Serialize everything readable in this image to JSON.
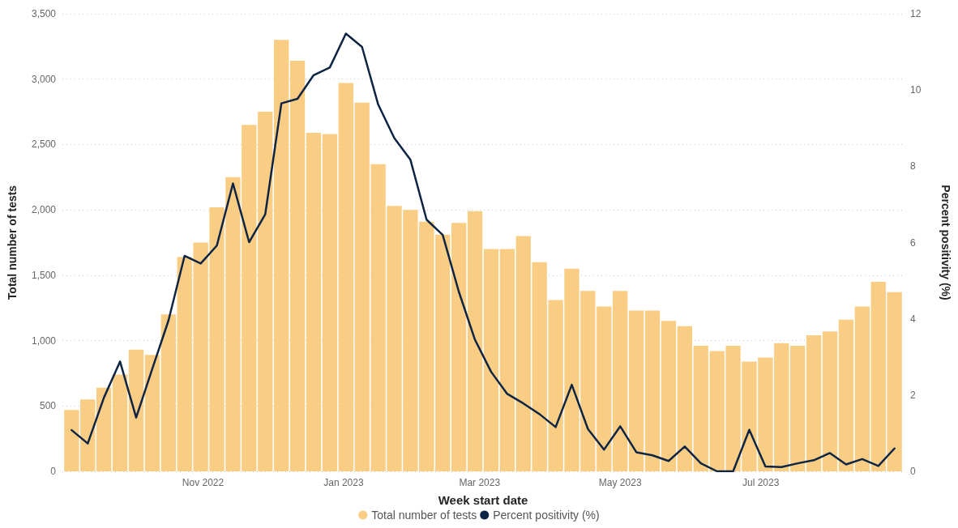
{
  "chart_data": {
    "type": "bar",
    "xlabel": "Week start date",
    "ylabel": "Total number of tests",
    "y2label": "Percent positivity (%)",
    "x": [
      "2022-09-05",
      "2022-09-12",
      "2022-09-19",
      "2022-09-26",
      "2022-10-03",
      "2022-10-10",
      "2022-10-17",
      "2022-10-24",
      "2022-10-31",
      "2022-11-07",
      "2022-11-14",
      "2022-11-21",
      "2022-11-28",
      "2022-12-05",
      "2022-12-12",
      "2022-12-19",
      "2022-12-26",
      "2023-01-02",
      "2023-01-09",
      "2023-01-16",
      "2023-01-23",
      "2023-01-30",
      "2023-02-06",
      "2023-02-13",
      "2023-02-20",
      "2023-02-27",
      "2023-03-06",
      "2023-03-13",
      "2023-03-20",
      "2023-03-27",
      "2023-04-03",
      "2023-04-10",
      "2023-04-17",
      "2023-04-24",
      "2023-05-01",
      "2023-05-08",
      "2023-05-15",
      "2023-05-22",
      "2023-05-29",
      "2023-06-05",
      "2023-06-12",
      "2023-06-19",
      "2023-06-26",
      "2023-07-03",
      "2023-07-10",
      "2023-07-17",
      "2023-07-24",
      "2023-07-31",
      "2023-08-07",
      "2023-08-14",
      "2023-08-21",
      "2023-08-28"
    ],
    "series": [
      {
        "name": "Total number of tests",
        "color": "#f9cd84",
        "values": [
          470,
          550,
          640,
          740,
          930,
          890,
          1200,
          1640,
          1750,
          2020,
          2250,
          2650,
          2750,
          3300,
          3140,
          2590,
          2580,
          2970,
          2820,
          2350,
          2030,
          2000,
          1910,
          1810,
          1900,
          1990,
          1700,
          1700,
          1800,
          1600,
          1310,
          1550,
          1380,
          1260,
          1380,
          1230,
          1230,
          1150,
          1110,
          960,
          920,
          960,
          840,
          870,
          980,
          960,
          1040,
          1070,
          1160,
          1260,
          1450,
          1370
        ]
      },
      {
        "name": "Percent positivity (%)",
        "type": "line",
        "axis": "y2",
        "color": "#0d2444",
        "values": [
          1.08,
          0.73,
          1.93,
          2.88,
          1.41,
          2.69,
          3.95,
          5.65,
          5.45,
          5.92,
          7.55,
          6.01,
          6.74,
          9.65,
          9.77,
          10.39,
          10.59,
          11.48,
          11.13,
          9.62,
          8.74,
          8.17,
          6.6,
          6.2,
          4.71,
          3.45,
          2.61,
          2.03,
          1.78,
          1.5,
          1.16,
          2.27,
          1.11,
          0.57,
          1.18,
          0.5,
          0.42,
          0.27,
          0.65,
          0.21,
          0,
          0,
          1.09,
          0.13,
          0.11,
          0.21,
          0.29,
          0.48,
          0.18,
          0.32,
          0.14,
          0.6
        ]
      }
    ],
    "xlim": [
      "2022-09-01",
      "2023-09-01"
    ],
    "xticks": [
      {
        "value": "2022-11-01",
        "label": "Nov 2022"
      },
      {
        "value": "2023-01-01",
        "label": "Jan 2023"
      },
      {
        "value": "2023-03-01",
        "label": "Mar 2023"
      },
      {
        "value": "2023-05-01",
        "label": "May 2023"
      },
      {
        "value": "2023-07-01",
        "label": "Jul 2023"
      }
    ],
    "ylim": [
      0,
      3500
    ],
    "yticks": [
      {
        "value": 0,
        "label": "0"
      },
      {
        "value": 500,
        "label": "500"
      },
      {
        "value": 1000,
        "label": "1,000"
      },
      {
        "value": 1500,
        "label": "1,500"
      },
      {
        "value": 2000,
        "label": "2,000"
      },
      {
        "value": 2500,
        "label": "2,500"
      },
      {
        "value": 3000,
        "label": "3,000"
      },
      {
        "value": 3500,
        "label": "3,500"
      }
    ],
    "y2lim": [
      0,
      12
    ],
    "y2ticks": [
      0,
      2,
      4,
      6,
      8,
      10,
      12
    ],
    "grid": "y",
    "legend": "bottom",
    "marker": "none",
    "line_style": "solid"
  }
}
